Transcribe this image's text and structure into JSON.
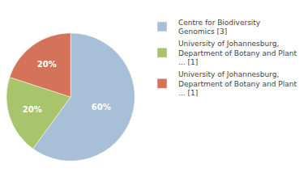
{
  "chart_data": {
    "type": "pie",
    "categories": [
      "Centre for Biodiversity\nGenomics [3]",
      "University of Johannesburg,\nDepartment of Botany and Plant\n... [1]",
      "University of Johannesburg,\nDepartment of Botany and Plant\n... [1]"
    ],
    "values": [
      60,
      20,
      20
    ],
    "value_labels": [
      "60%",
      "20%",
      "20%"
    ],
    "data_labels": true,
    "colors": [
      "#a8bfd8",
      "#a8c46c",
      "#d4725a"
    ],
    "legend": "right"
  }
}
